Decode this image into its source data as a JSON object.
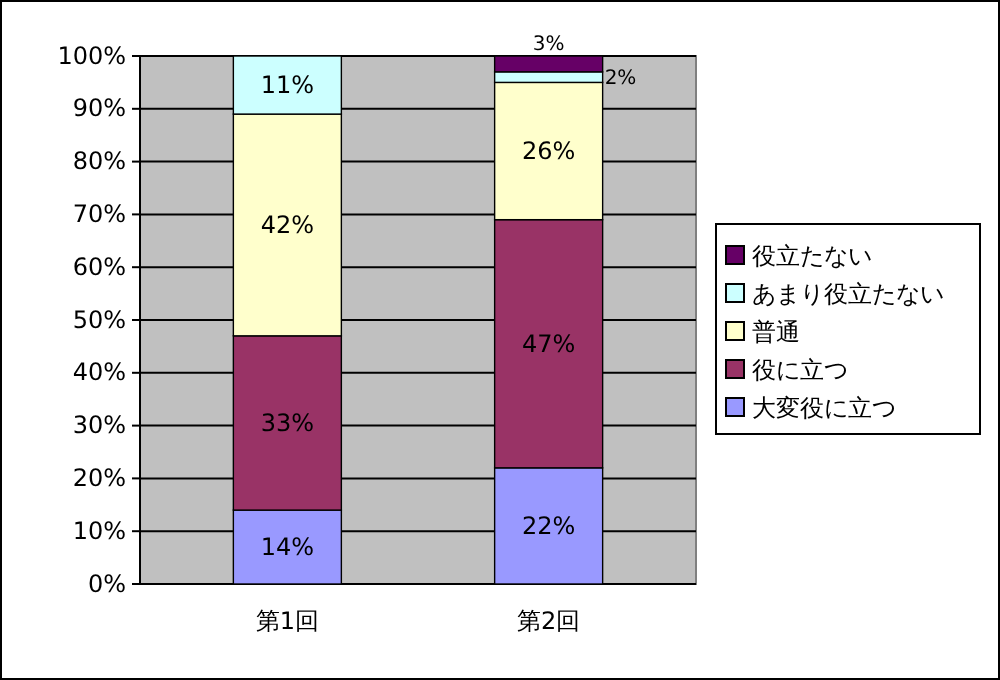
{
  "chart_data": {
    "type": "bar",
    "stacked": true,
    "categories": [
      "第1回",
      "第2回"
    ],
    "series": [
      {
        "name": "大変役に立つ",
        "color": "#9999ff",
        "values": [
          14,
          22
        ],
        "value_labels": [
          "14%",
          "22%"
        ]
      },
      {
        "name": "役に立つ",
        "color": "#993366",
        "values": [
          33,
          47
        ],
        "value_labels": [
          "33%",
          "47%"
        ]
      },
      {
        "name": "普通",
        "color": "#ffffcc",
        "values": [
          42,
          26
        ],
        "value_labels": [
          "42%",
          "26%"
        ]
      },
      {
        "name": "あまり役立たない",
        "color": "#ccffff",
        "values": [
          11,
          2
        ],
        "value_labels": [
          "11%",
          "2%"
        ]
      },
      {
        "name": "役立たない",
        "color": "#660066",
        "values": [
          0,
          3
        ],
        "value_labels": [
          null,
          "3%"
        ]
      }
    ],
    "ylim": [
      0,
      100
    ],
    "yticks": [
      {
        "value": 0,
        "label": "0%"
      },
      {
        "value": 10,
        "label": "10%"
      },
      {
        "value": 20,
        "label": "20%"
      },
      {
        "value": 30,
        "label": "30%"
      },
      {
        "value": 40,
        "label": "40%"
      },
      {
        "value": 50,
        "label": "50%"
      },
      {
        "value": 60,
        "label": "60%"
      },
      {
        "value": 70,
        "label": "70%"
      },
      {
        "value": 80,
        "label": "80%"
      },
      {
        "value": 90,
        "label": "90%"
      },
      {
        "value": 100,
        "label": "100%"
      }
    ],
    "grid": "y",
    "legend": "right"
  }
}
